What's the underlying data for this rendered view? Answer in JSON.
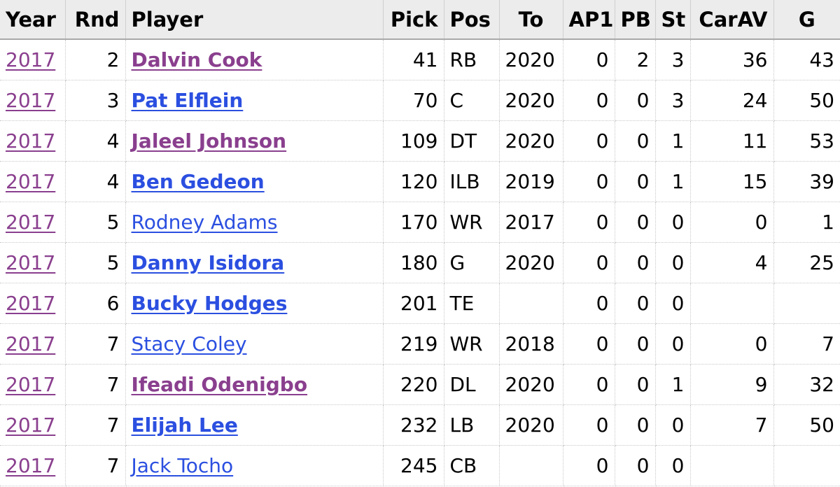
{
  "table": {
    "headers": [
      "Year",
      "Rnd",
      "Player",
      "Pick",
      "Pos",
      "To",
      "AP1",
      "PB",
      "St",
      "CarAV",
      "G"
    ],
    "rows": [
      {
        "year": "2017",
        "rnd": "2",
        "player": "Dalvin Cook",
        "pick": "41",
        "pos": "RB",
        "to": "2020",
        "ap1": "0",
        "pb": "2",
        "st": "3",
        "carav": "36",
        "g": "43",
        "player_style": "visited-bold"
      },
      {
        "year": "2017",
        "rnd": "3",
        "player": "Pat Elflein",
        "pick": "70",
        "pos": "C",
        "to": "2020",
        "ap1": "0",
        "pb": "0",
        "st": "3",
        "carav": "24",
        "g": "50",
        "player_style": "unvisited-bold"
      },
      {
        "year": "2017",
        "rnd": "4",
        "player": "Jaleel Johnson",
        "pick": "109",
        "pos": "DT",
        "to": "2020",
        "ap1": "0",
        "pb": "0",
        "st": "1",
        "carav": "11",
        "g": "53",
        "player_style": "visited-bold"
      },
      {
        "year": "2017",
        "rnd": "4",
        "player": "Ben Gedeon",
        "pick": "120",
        "pos": "ILB",
        "to": "2019",
        "ap1": "0",
        "pb": "0",
        "st": "1",
        "carav": "15",
        "g": "39",
        "player_style": "unvisited-bold"
      },
      {
        "year": "2017",
        "rnd": "5",
        "player": "Rodney Adams",
        "pick": "170",
        "pos": "WR",
        "to": "2017",
        "ap1": "0",
        "pb": "0",
        "st": "0",
        "carav": "0",
        "g": "1",
        "player_style": "unvisited"
      },
      {
        "year": "2017",
        "rnd": "5",
        "player": "Danny Isidora",
        "pick": "180",
        "pos": "G",
        "to": "2020",
        "ap1": "0",
        "pb": "0",
        "st": "0",
        "carav": "4",
        "g": "25",
        "player_style": "unvisited-bold"
      },
      {
        "year": "2017",
        "rnd": "6",
        "player": "Bucky Hodges",
        "pick": "201",
        "pos": "TE",
        "to": "",
        "ap1": "0",
        "pb": "0",
        "st": "0",
        "carav": "",
        "g": "",
        "player_style": "unvisited-bold"
      },
      {
        "year": "2017",
        "rnd": "7",
        "player": "Stacy Coley",
        "pick": "219",
        "pos": "WR",
        "to": "2018",
        "ap1": "0",
        "pb": "0",
        "st": "0",
        "carav": "0",
        "g": "7",
        "player_style": "unvisited"
      },
      {
        "year": "2017",
        "rnd": "7",
        "player": "Ifeadi Odenigbo",
        "pick": "220",
        "pos": "DL",
        "to": "2020",
        "ap1": "0",
        "pb": "0",
        "st": "1",
        "carav": "9",
        "g": "32",
        "player_style": "visited-bold"
      },
      {
        "year": "2017",
        "rnd": "7",
        "player": "Elijah Lee",
        "pick": "232",
        "pos": "LB",
        "to": "2020",
        "ap1": "0",
        "pb": "0",
        "st": "0",
        "carav": "7",
        "g": "50",
        "player_style": "unvisited-bold"
      },
      {
        "year": "2017",
        "rnd": "7",
        "player": "Jack Tocho",
        "pick": "245",
        "pos": "CB",
        "to": "",
        "ap1": "0",
        "pb": "0",
        "st": "0",
        "carav": "",
        "g": "",
        "player_style": "unvisited"
      }
    ]
  },
  "colors": {
    "visited_link": "#8a3f8e",
    "unvisited_link": "#2b4fe0",
    "header_bg": "#ececec"
  }
}
